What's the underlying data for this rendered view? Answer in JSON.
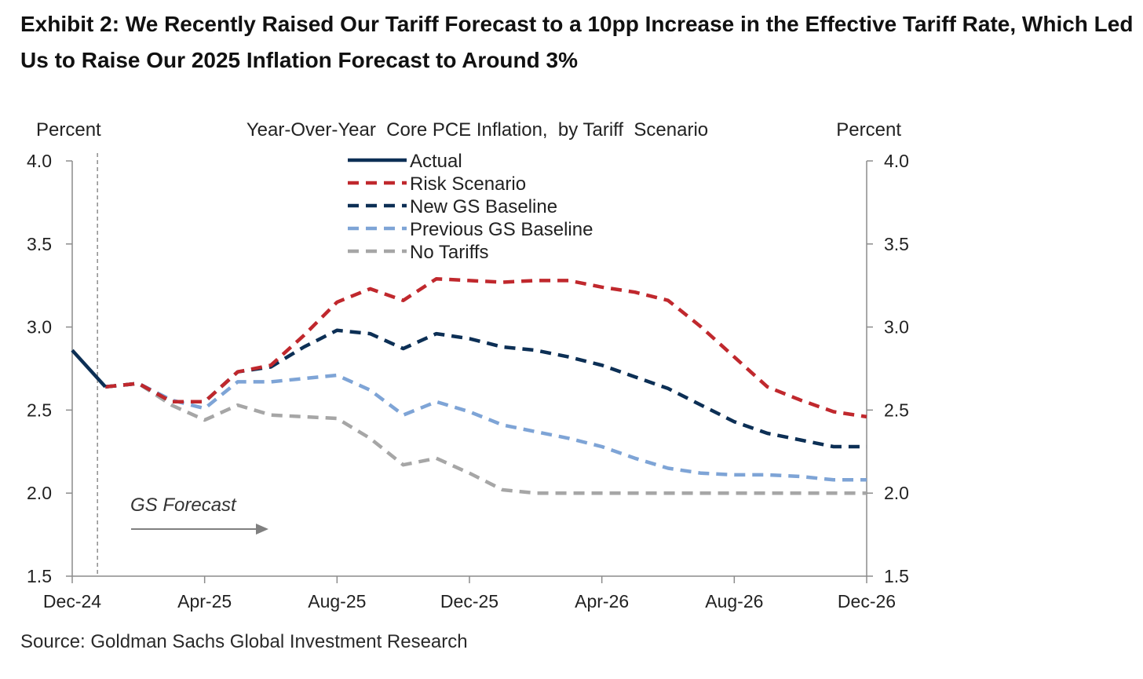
{
  "title": "Exhibit 2: We Recently Raised Our Tariff Forecast to a 10pp Increase in the Effective Tariff Rate, Which Led Us to Raise Our 2025 Inflation Forecast to Around 3%",
  "source": "Source: Goldman Sachs Global Investment Research",
  "chart_data": {
    "type": "line",
    "chart_title": "Year-Over-Year  Core PCE Inflation,  by Tariff  Scenario",
    "y_left_label": "Percent",
    "y_right_label": "Percent",
    "ylim": [
      1.5,
      4.0
    ],
    "y_ticks": [
      "4.0",
      "3.5",
      "3.0",
      "2.5",
      "2.0",
      "1.5"
    ],
    "y_tick_values": [
      4.0,
      3.5,
      3.0,
      2.5,
      2.0,
      1.5
    ],
    "x_tick_labels": [
      "Dec-24",
      "Apr-25",
      "Aug-25",
      "Dec-25",
      "Apr-26",
      "Aug-26",
      "Dec-26"
    ],
    "x_tick_index": [
      0,
      4,
      8,
      12,
      16,
      20,
      24
    ],
    "x_months": [
      "Dec-24",
      "Jan-25",
      "Feb-25",
      "Mar-25",
      "Apr-25",
      "May-25",
      "Jun-25",
      "Jul-25",
      "Aug-25",
      "Sep-25",
      "Oct-25",
      "Nov-25",
      "Dec-25",
      "Jan-26",
      "Feb-26",
      "Mar-26",
      "Apr-26",
      "May-26",
      "Jun-26",
      "Jul-26",
      "Aug-26",
      "Sep-26",
      "Oct-26",
      "Nov-26",
      "Dec-26"
    ],
    "forecast_label": "GS Forecast",
    "forecast_start": "Jan-25",
    "legend_position": "top-center",
    "series": [
      {
        "name": "Actual",
        "color": "#0c2f55",
        "dashed": false,
        "start": 0,
        "values": [
          2.86,
          2.64
        ]
      },
      {
        "name": "Risk Scenario",
        "color": "#c0282d",
        "dashed": true,
        "start": 1,
        "values": [
          2.64,
          2.66,
          2.55,
          2.55,
          2.73,
          2.77,
          2.95,
          3.15,
          3.23,
          3.16,
          3.29,
          3.28,
          3.27,
          3.28,
          3.28,
          3.24,
          3.21,
          3.16,
          3.0,
          2.82,
          2.64,
          2.56,
          2.49,
          2.46
        ]
      },
      {
        "name": "New GS Baseline",
        "color": "#0c2f55",
        "dashed": true,
        "start": 1,
        "values": [
          2.64,
          2.66,
          2.55,
          2.55,
          2.73,
          2.76,
          2.88,
          2.98,
          2.96,
          2.87,
          2.96,
          2.93,
          2.88,
          2.86,
          2.82,
          2.77,
          2.7,
          2.63,
          2.53,
          2.43,
          2.36,
          2.32,
          2.28,
          2.28
        ]
      },
      {
        "name": "Previous GS Baseline",
        "color": "#7ea4d6",
        "dashed": true,
        "start": 1,
        "values": [
          2.64,
          2.66,
          2.56,
          2.51,
          2.67,
          2.67,
          2.69,
          2.71,
          2.62,
          2.47,
          2.55,
          2.49,
          2.41,
          2.37,
          2.33,
          2.28,
          2.21,
          2.15,
          2.12,
          2.11,
          2.11,
          2.1,
          2.08,
          2.08
        ]
      },
      {
        "name": "No Tariffs",
        "color": "#a6a6a6",
        "dashed": true,
        "start": 1,
        "values": [
          2.64,
          2.66,
          2.53,
          2.44,
          2.53,
          2.47,
          2.46,
          2.45,
          2.33,
          2.17,
          2.21,
          2.12,
          2.02,
          2.0,
          2.0,
          2.0,
          2.0,
          2.0,
          2.0,
          2.0,
          2.0,
          2.0,
          2.0,
          2.0
        ]
      }
    ]
  }
}
